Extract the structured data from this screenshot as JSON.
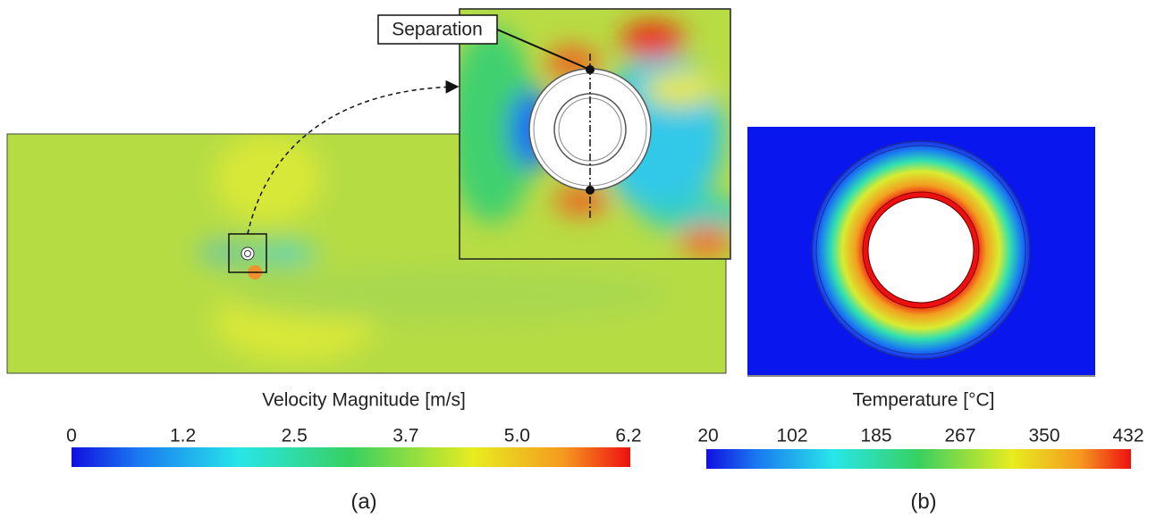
{
  "panels": [
    {
      "annotation": "Separation",
      "colorbar": {
        "title": "Velocity Magnitude [m/s]",
        "ticks": [
          "0",
          "1.2",
          "2.5",
          "3.7",
          "5.0",
          "6.2"
        ]
      },
      "caption": "(a)"
    },
    {
      "colorbar": {
        "title": "Temperature [°C]",
        "ticks": [
          "20",
          "102",
          "185",
          "267",
          "350",
          "432"
        ]
      },
      "caption": "(b)"
    }
  ]
}
